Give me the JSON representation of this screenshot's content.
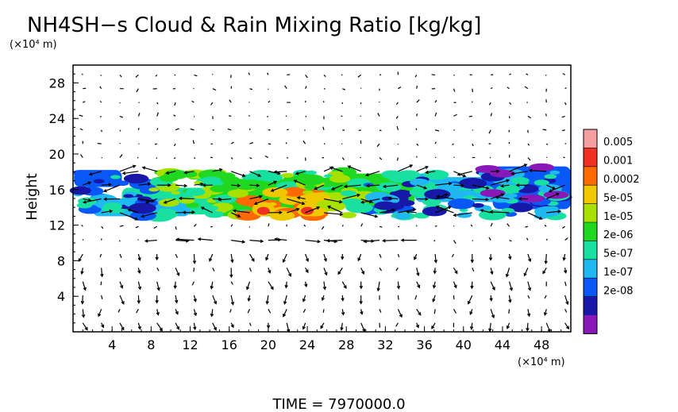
{
  "chart_data": {
    "type": "heatmap",
    "title": "NH4SH−s Cloud & Rain Mixing Ratio [kg/kg]",
    "ylabel": "Height",
    "y_unit": "(×10⁴ m)",
    "x_unit": "(×10⁴ m)",
    "xlim": [
      0,
      51
    ],
    "ylim": [
      0,
      30
    ],
    "x_ticks": [
      "4",
      "8",
      "12",
      "16",
      "20",
      "24",
      "28",
      "32",
      "36",
      "40",
      "44",
      "48"
    ],
    "y_ticks": [
      "4",
      "8",
      "12",
      "16",
      "20",
      "24",
      "28"
    ],
    "grid": false,
    "overlay": "wind vector arrows",
    "colorbar": {
      "labels": [
        "0.005",
        "0.001",
        "0.0002",
        "5e-05",
        "1e-05",
        "2e-06",
        "5e-07",
        "1e-07",
        "2e-08"
      ],
      "colors": [
        "#f5a0a0",
        "#f03020",
        "#ff6a00",
        "#f0c800",
        "#a8e000",
        "#20d820",
        "#18e0a0",
        "#20b8f0",
        "#0858f8",
        "#1818a8",
        "#8818b8"
      ]
    },
    "cloud_layer": {
      "y_bottom": 13,
      "y_top": 18
    },
    "max_mixing_ratio_x": [
      19.5,
      24
    ],
    "time_label": "TIME  =  7970000.0"
  }
}
